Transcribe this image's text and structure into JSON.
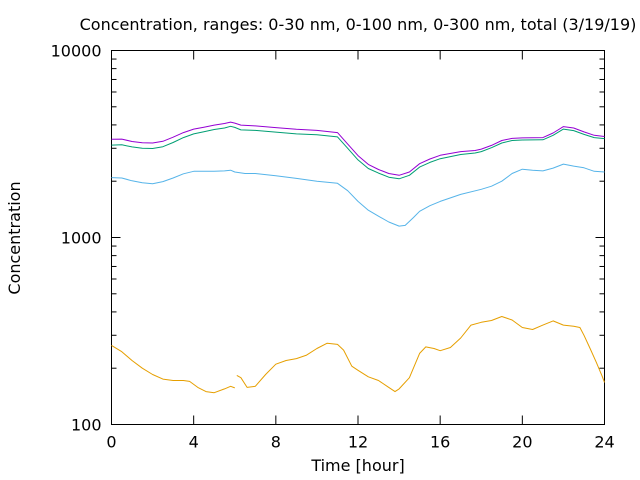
{
  "chart_data": {
    "type": "line",
    "title": "Concentration, ranges: 0-30 nm, 0-100 nm, 0-300 nm, total (3/19/19)",
    "xlabel": "Time [hour]",
    "ylabel": "Concentration",
    "xlim": [
      0,
      24
    ],
    "ylim": [
      100,
      10000
    ],
    "yscale": "log",
    "grid": false,
    "legend": "none",
    "x_ticks": [
      "0",
      "4",
      "8",
      "12",
      "16",
      "20",
      "24"
    ],
    "y_ticks": [
      "100",
      "1000",
      "10000"
    ],
    "series": [
      {
        "color": "#e69f00",
        "segments": [
          [
            [
              0,
              265
            ],
            [
              0.5,
              245
            ],
            [
              1,
              220
            ],
            [
              1.5,
              200
            ],
            [
              2,
              185
            ],
            [
              2.5,
              175
            ],
            [
              3,
              172
            ],
            [
              3.5,
              172
            ],
            [
              3.8,
              170
            ],
            [
              4.2,
              158
            ],
            [
              4.6,
              150
            ],
            [
              5,
              148
            ],
            [
              5.5,
              155
            ],
            [
              5.8,
              160
            ],
            [
              6,
              157
            ]
          ],
          [
            [
              6.1,
              183
            ],
            [
              6.3,
              178
            ],
            [
              6.6,
              158
            ],
            [
              7,
              160
            ],
            [
              7.5,
              185
            ],
            [
              8,
              210
            ],
            [
              8.5,
              220
            ],
            [
              9,
              225
            ],
            [
              9.5,
              235
            ],
            [
              10,
              255
            ],
            [
              10.5,
              272
            ],
            [
              11,
              268
            ],
            [
              11.3,
              250
            ],
            [
              11.7,
              205
            ],
            [
              12,
              195
            ],
            [
              12.5,
              180
            ],
            [
              13,
              172
            ],
            [
              13.5,
              158
            ],
            [
              13.8,
              150
            ],
            [
              14,
              155
            ],
            [
              14.5,
              178
            ],
            [
              15,
              240
            ],
            [
              15.3,
              260
            ],
            [
              15.7,
              255
            ],
            [
              16,
              248
            ],
            [
              16.5,
              258
            ],
            [
              17,
              290
            ],
            [
              17.5,
              340
            ],
            [
              18,
              352
            ],
            [
              18.5,
              360
            ],
            [
              19,
              378
            ],
            [
              19.5,
              362
            ],
            [
              20,
              330
            ],
            [
              20.5,
              322
            ],
            [
              21,
              340
            ],
            [
              21.5,
              358
            ],
            [
              22,
              340
            ],
            [
              22.5,
              335
            ],
            [
              22.8,
              330
            ],
            [
              23,
              300
            ],
            [
              23.3,
              255
            ],
            [
              23.6,
              215
            ],
            [
              23.9,
              180
            ],
            [
              24,
              168
            ]
          ]
        ]
      },
      {
        "color": "#56b4e9",
        "segments": [
          [
            [
              0,
              2090
            ],
            [
              0.5,
              2080
            ],
            [
              1,
              2010
            ],
            [
              1.5,
              1960
            ],
            [
              2,
              1940
            ],
            [
              2.5,
              1990
            ],
            [
              3,
              2080
            ],
            [
              3.5,
              2190
            ],
            [
              4,
              2260
            ],
            [
              5,
              2260
            ],
            [
              5.5,
              2270
            ],
            [
              5.8,
              2290
            ],
            [
              6,
              2240
            ],
            [
              6.5,
              2200
            ],
            [
              7,
              2200
            ],
            [
              8,
              2140
            ],
            [
              9,
              2070
            ],
            [
              10,
              2000
            ],
            [
              11,
              1950
            ],
            [
              11.5,
              1780
            ],
            [
              12,
              1560
            ],
            [
              12.5,
              1400
            ],
            [
              13,
              1300
            ],
            [
              13.5,
              1210
            ],
            [
              14,
              1150
            ],
            [
              14.3,
              1160
            ],
            [
              14.7,
              1280
            ],
            [
              15,
              1380
            ],
            [
              15.5,
              1480
            ],
            [
              16,
              1560
            ],
            [
              17,
              1700
            ],
            [
              18,
              1810
            ],
            [
              18.5,
              1880
            ],
            [
              19,
              2000
            ],
            [
              19.5,
              2200
            ],
            [
              20,
              2320
            ],
            [
              20.5,
              2290
            ],
            [
              21,
              2270
            ],
            [
              21.5,
              2350
            ],
            [
              22,
              2470
            ],
            [
              22.5,
              2410
            ],
            [
              23,
              2360
            ],
            [
              23.5,
              2260
            ],
            [
              24,
              2240
            ]
          ]
        ]
      },
      {
        "color": "#009e73",
        "segments": [
          [
            [
              0,
              3120
            ],
            [
              0.5,
              3130
            ],
            [
              1,
              3050
            ],
            [
              1.5,
              3000
            ],
            [
              2,
              2990
            ],
            [
              2.5,
              3060
            ],
            [
              3,
              3220
            ],
            [
              3.5,
              3420
            ],
            [
              4,
              3580
            ],
            [
              4.5,
              3680
            ],
            [
              5,
              3780
            ],
            [
              5.5,
              3850
            ],
            [
              5.8,
              3930
            ],
            [
              6,
              3880
            ],
            [
              6.3,
              3760
            ],
            [
              7,
              3740
            ],
            [
              8,
              3660
            ],
            [
              9,
              3580
            ],
            [
              10,
              3540
            ],
            [
              11,
              3450
            ],
            [
              11.5,
              3000
            ],
            [
              12,
              2600
            ],
            [
              12.5,
              2340
            ],
            [
              13,
              2210
            ],
            [
              13.5,
              2100
            ],
            [
              14,
              2060
            ],
            [
              14.5,
              2150
            ],
            [
              15,
              2380
            ],
            [
              15.5,
              2520
            ],
            [
              16,
              2640
            ],
            [
              17,
              2780
            ],
            [
              17.7,
              2830
            ],
            [
              18,
              2880
            ],
            [
              18.5,
              3020
            ],
            [
              19,
              3200
            ],
            [
              19.5,
              3300
            ],
            [
              20,
              3320
            ],
            [
              21,
              3330
            ],
            [
              21.5,
              3520
            ],
            [
              22,
              3800
            ],
            [
              22.5,
              3730
            ],
            [
              23,
              3560
            ],
            [
              23.5,
              3420
            ],
            [
              24,
              3380
            ]
          ]
        ]
      },
      {
        "color": "#9400d3",
        "segments": [
          [
            [
              0,
              3350
            ],
            [
              0.5,
              3360
            ],
            [
              1,
              3260
            ],
            [
              1.5,
              3210
            ],
            [
              2,
              3200
            ],
            [
              2.5,
              3270
            ],
            [
              3,
              3440
            ],
            [
              3.5,
              3640
            ],
            [
              4,
              3800
            ],
            [
              4.5,
              3890
            ],
            [
              5,
              3990
            ],
            [
              5.5,
              4070
            ],
            [
              5.8,
              4140
            ],
            [
              6,
              4090
            ],
            [
              6.3,
              3990
            ],
            [
              7,
              3950
            ],
            [
              8,
              3870
            ],
            [
              9,
              3790
            ],
            [
              10,
              3740
            ],
            [
              11,
              3640
            ],
            [
              11.5,
              3160
            ],
            [
              12,
              2740
            ],
            [
              12.5,
              2460
            ],
            [
              13,
              2310
            ],
            [
              13.5,
              2200
            ],
            [
              14,
              2150
            ],
            [
              14.5,
              2240
            ],
            [
              15,
              2480
            ],
            [
              15.5,
              2630
            ],
            [
              16,
              2750
            ],
            [
              17,
              2880
            ],
            [
              17.7,
              2920
            ],
            [
              18,
              2970
            ],
            [
              18.5,
              3110
            ],
            [
              19,
              3300
            ],
            [
              19.5,
              3390
            ],
            [
              20,
              3410
            ],
            [
              21,
              3420
            ],
            [
              21.5,
              3620
            ],
            [
              22,
              3920
            ],
            [
              22.5,
              3850
            ],
            [
              23,
              3670
            ],
            [
              23.5,
              3520
            ],
            [
              24,
              3470
            ]
          ]
        ]
      }
    ]
  }
}
